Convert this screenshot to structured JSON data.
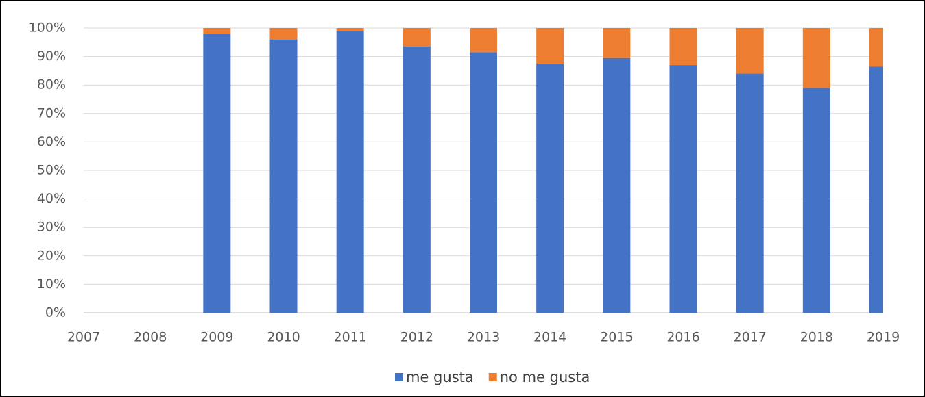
{
  "chart_data": {
    "type": "stacked_bar",
    "categories": [
      "2007",
      "2008",
      "2009",
      "2010",
      "2011",
      "2012",
      "2013",
      "2014",
      "2015",
      "2016",
      "2017",
      "2018",
      "2019"
    ],
    "series": [
      {
        "name": "me gusta",
        "color": "#4472c4",
        "values": [
          null,
          null,
          98,
          96,
          99,
          93.5,
          91.5,
          87.5,
          89.5,
          87,
          84,
          79,
          86.5
        ]
      },
      {
        "name": "no me gusta",
        "color": "#ed7d31",
        "values": [
          null,
          null,
          2,
          4,
          1,
          6.5,
          8.5,
          12.5,
          10.5,
          13,
          16,
          21,
          13.5
        ]
      }
    ],
    "ylim": [
      0,
      100
    ],
    "yticks": [
      {
        "value": 0,
        "label": "0%"
      },
      {
        "value": 10,
        "label": "10%"
      },
      {
        "value": 20,
        "label": "20%"
      },
      {
        "value": 30,
        "label": "30%"
      },
      {
        "value": 40,
        "label": "40%"
      },
      {
        "value": 50,
        "label": "50%"
      },
      {
        "value": 60,
        "label": "60%"
      },
      {
        "value": 70,
        "label": "70%"
      },
      {
        "value": 80,
        "label": "80%"
      },
      {
        "value": 90,
        "label": "90%"
      },
      {
        "value": 100,
        "label": "100%"
      }
    ],
    "grid": true,
    "legend": "bottom"
  }
}
